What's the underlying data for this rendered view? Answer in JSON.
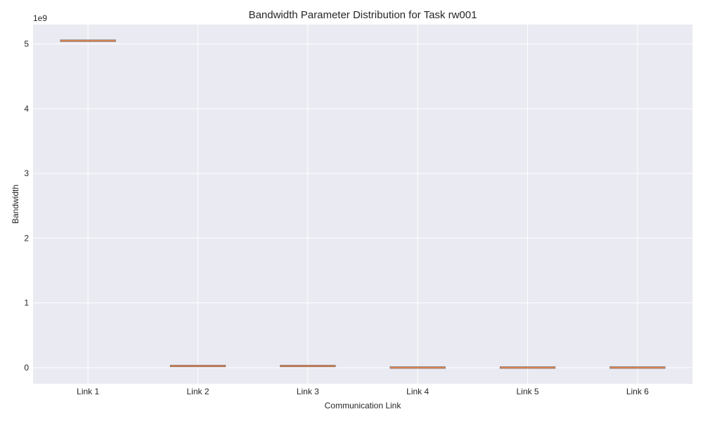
{
  "chart_data": {
    "type": "box",
    "title": "Bandwidth Parameter Distribution for Task rw001",
    "xlabel": "Communication Link",
    "ylabel": "Bandwidth",
    "offset_text": "1e9",
    "categories": [
      "Link 1",
      "Link 2",
      "Link 3",
      "Link 4",
      "Link 5",
      "Link 6"
    ],
    "values": [
      5050000000,
      25000000,
      25000000,
      1000000,
      1000000,
      1000000
    ],
    "ylim": [
      -250000000,
      5300000000
    ],
    "yticks": [
      0,
      1,
      2,
      3,
      4,
      5
    ],
    "ytick_multiplier": 1000000000,
    "grid": true,
    "colors": {
      "plot_bg": "#eaeaf2",
      "grid": "#ffffff",
      "median": "#dd8452",
      "box_edge": "#555555"
    }
  }
}
